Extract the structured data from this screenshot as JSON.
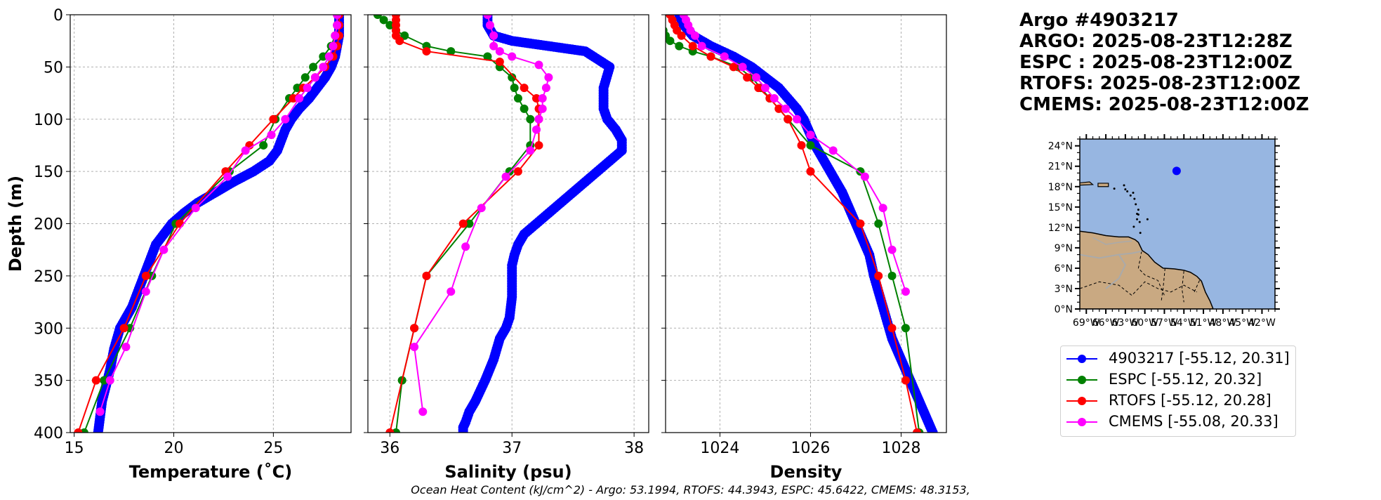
{
  "info": {
    "lines": [
      "Argo #4903217",
      "ARGO: 2025-08-23T12:28Z",
      "ESPC : 2025-08-23T12:00Z",
      "RTOFS: 2025-08-23T12:00Z",
      "CMEMS: 2025-08-23T12:00Z"
    ]
  },
  "legend": [
    {
      "label": "4903217 [-55.12, 20.31]",
      "color": "#0000ff"
    },
    {
      "label": "ESPC [-55.12, 20.32]",
      "color": "#008000"
    },
    {
      "label": "RTOFS [-55.12, 20.28]",
      "color": "#ff0000"
    },
    {
      "label": "CMEMS [-55.08, 20.33]",
      "color": "#ff00ff"
    }
  ],
  "footer": "Ocean Heat Content (kJ/cm^2) - Argo: 53.1994,  RTOFS: 44.3943,  ESPC: 45.6422,  CMEMS: 48.3153,",
  "chart_data": [
    {
      "type": "line",
      "panel": "temperature",
      "xlabel": "Temperature (˚C)",
      "ylabel": "Depth (m)",
      "xlim": [
        14.8,
        28.9
      ],
      "ylim": [
        400,
        0
      ],
      "xticks": [
        15,
        20,
        25
      ],
      "yticks": [
        0,
        50,
        100,
        150,
        200,
        250,
        300,
        350,
        400
      ],
      "series": [
        {
          "name": "4903217",
          "color": "#0000ff",
          "thick": true,
          "x": [
            28.3,
            28.3,
            28.3,
            28.2,
            28.1,
            27.9,
            27.6,
            27.2,
            26.8,
            26.3,
            25.9,
            25.6,
            25.4,
            25.2,
            24.8,
            24.0,
            23.0,
            22.1,
            21.2,
            20.5,
            19.9,
            19.5,
            19.1,
            18.9,
            18.7,
            18.5,
            18.3,
            18.1,
            17.9,
            17.6,
            17.3,
            17.0,
            16.8,
            16.6,
            16.4,
            16.3,
            16.2
          ],
          "y": [
            0,
            10,
            20,
            30,
            40,
            50,
            60,
            70,
            80,
            90,
            100,
            110,
            120,
            130,
            140,
            150,
            160,
            170,
            180,
            190,
            200,
            210,
            220,
            230,
            240,
            250,
            260,
            270,
            280,
            290,
            300,
            320,
            340,
            355,
            370,
            385,
            400
          ]
        },
        {
          "name": "ESPC",
          "color": "#008000",
          "x": [
            28.2,
            28.2,
            28.1,
            27.9,
            27.5,
            27.0,
            26.6,
            26.2,
            25.8,
            25.1,
            24.5,
            22.8,
            20.1,
            18.9,
            17.8,
            16.5,
            15.5
          ],
          "y": [
            0,
            10,
            20,
            30,
            40,
            50,
            60,
            70,
            80,
            100,
            125,
            150,
            200,
            250,
            300,
            350,
            400
          ]
        },
        {
          "name": "RTOFS",
          "color": "#ff0000",
          "x": [
            28.3,
            28.3,
            28.3,
            28.2,
            28.0,
            27.6,
            27.1,
            26.5,
            26.0,
            25.0,
            23.8,
            22.6,
            20.3,
            18.6,
            17.5,
            16.1,
            15.2
          ],
          "y": [
            0,
            10,
            20,
            30,
            40,
            50,
            60,
            70,
            80,
            100,
            125,
            150,
            200,
            250,
            300,
            350,
            400
          ]
        },
        {
          "name": "CMEMS",
          "color": "#ff00ff",
          "x": [
            28.2,
            28.2,
            28.1,
            28.0,
            27.8,
            27.5,
            27.1,
            26.7,
            26.3,
            25.6,
            24.9,
            23.6,
            22.7,
            21.1,
            19.5,
            18.6,
            17.6,
            16.8,
            16.3
          ],
          "y": [
            0,
            10,
            20,
            30,
            40,
            50,
            60,
            70,
            80,
            100,
            115,
            130,
            155,
            185,
            225,
            265,
            318,
            350,
            380
          ]
        }
      ]
    },
    {
      "type": "line",
      "panel": "salinity",
      "xlabel": "Salinity (psu)",
      "xlim": [
        35.82,
        38.12
      ],
      "ylim": [
        400,
        0
      ],
      "xticks": [
        36,
        37,
        38
      ],
      "series": [
        {
          "name": "4903217",
          "color": "#0000ff",
          "thick": true,
          "x": [
            36.8,
            36.8,
            36.85,
            37.0,
            37.3,
            37.6,
            37.8,
            37.75,
            37.75,
            37.75,
            37.78,
            37.85,
            37.9,
            37.9,
            37.8,
            37.7,
            37.6,
            37.5,
            37.4,
            37.3,
            37.2,
            37.1,
            37.05,
            37.02,
            37.0,
            37.0,
            37.0,
            36.98,
            36.95,
            36.9,
            36.85,
            36.78,
            36.7,
            36.65,
            36.62,
            36.6,
            36.6
          ],
          "y": [
            0,
            10,
            20,
            25,
            30,
            35,
            50,
            70,
            80,
            90,
            100,
            110,
            120,
            130,
            140,
            150,
            160,
            170,
            180,
            190,
            200,
            210,
            220,
            230,
            240,
            250,
            270,
            290,
            300,
            310,
            330,
            350,
            370,
            380,
            390,
            395,
            400
          ]
        },
        {
          "name": "ESPC",
          "color": "#008000",
          "x": [
            35.9,
            35.95,
            36.0,
            36.05,
            36.12,
            36.3,
            36.5,
            36.8,
            36.9,
            37.0,
            37.02,
            37.05,
            37.1,
            37.15,
            37.15,
            36.98,
            36.65,
            36.3,
            36.2,
            36.1,
            36.05
          ],
          "y": [
            0,
            5,
            10,
            15,
            20,
            30,
            35,
            40,
            50,
            60,
            70,
            80,
            90,
            100,
            125,
            150,
            200,
            250,
            300,
            350,
            400
          ]
        },
        {
          "name": "RTOFS",
          "color": "#ff0000",
          "x": [
            36.05,
            36.05,
            36.05,
            36.05,
            36.05,
            36.08,
            36.3,
            36.9,
            37.1,
            37.2,
            37.22,
            37.22,
            37.22,
            37.05,
            36.6,
            36.3,
            36.2,
            36.0
          ],
          "y": [
            0,
            5,
            10,
            15,
            20,
            25,
            35,
            45,
            70,
            80,
            90,
            100,
            125,
            150,
            200,
            250,
            300,
            400
          ]
        },
        {
          "name": "CMEMS",
          "color": "#ff00ff",
          "x": [
            36.8,
            36.82,
            36.85,
            36.85,
            36.9,
            37.0,
            37.22,
            37.3,
            37.28,
            37.25,
            37.25,
            37.22,
            37.2,
            37.15,
            36.95,
            36.75,
            36.62,
            36.5,
            36.2,
            36.27
          ],
          "y": [
            0,
            10,
            20,
            30,
            35,
            40,
            48,
            60,
            70,
            80,
            90,
            100,
            110,
            130,
            155,
            185,
            222,
            265,
            318,
            380
          ]
        }
      ]
    },
    {
      "type": "line",
      "panel": "density",
      "xlabel": "Density",
      "xlim": [
        1022.8,
        1029.0
      ],
      "ylim": [
        400,
        0
      ],
      "xticks": [
        1024,
        1026,
        1028
      ],
      "series": [
        {
          "name": "4903217",
          "color": "#0000ff",
          "thick": true,
          "x": [
            1023.1,
            1023.2,
            1023.4,
            1023.8,
            1024.3,
            1024.7,
            1025.0,
            1025.3,
            1025.5,
            1025.7,
            1025.85,
            1025.95,
            1026.1,
            1026.3,
            1026.5,
            1026.7,
            1026.85,
            1027.0,
            1027.15,
            1027.3,
            1027.4,
            1027.5,
            1027.6,
            1027.7,
            1027.8,
            1027.9,
            1028.0,
            1028.1,
            1028.2,
            1028.3,
            1028.4,
            1028.5,
            1028.6,
            1028.7
          ],
          "y": [
            0,
            10,
            20,
            30,
            40,
            50,
            60,
            70,
            80,
            90,
            100,
            110,
            125,
            140,
            155,
            170,
            185,
            200,
            215,
            230,
            250,
            265,
            280,
            295,
            310,
            320,
            330,
            340,
            350,
            360,
            370,
            380,
            390,
            400
          ]
        },
        {
          "name": "ESPC",
          "color": "#008000",
          "x": [
            1022.6,
            1022.65,
            1022.7,
            1022.75,
            1022.8,
            1022.9,
            1023.1,
            1023.4,
            1023.8,
            1024.4,
            1024.7,
            1024.9,
            1025.1,
            1025.5,
            1026.0,
            1027.1,
            1027.5,
            1027.8,
            1028.1,
            1028.4
          ],
          "y": [
            0,
            5,
            10,
            15,
            20,
            25,
            30,
            35,
            40,
            50,
            60,
            70,
            80,
            100,
            125,
            150,
            200,
            250,
            300,
            400
          ]
        },
        {
          "name": "RTOFS",
          "color": "#ff0000",
          "x": [
            1022.9,
            1022.95,
            1023.0,
            1023.05,
            1023.15,
            1023.4,
            1023.8,
            1024.3,
            1024.6,
            1024.85,
            1025.1,
            1025.3,
            1025.5,
            1025.8,
            1026.0,
            1027.1,
            1027.5,
            1027.8,
            1028.1,
            1028.35
          ],
          "y": [
            0,
            5,
            10,
            15,
            20,
            30,
            40,
            50,
            60,
            70,
            80,
            90,
            100,
            125,
            150,
            200,
            250,
            300,
            350,
            400
          ]
        },
        {
          "name": "CMEMS",
          "color": "#ff00ff",
          "x": [
            1023.2,
            1023.25,
            1023.3,
            1023.35,
            1023.45,
            1023.6,
            1024.1,
            1024.5,
            1024.8,
            1025.0,
            1025.2,
            1025.45,
            1025.7,
            1026.0,
            1026.5,
            1027.2,
            1027.6,
            1027.8,
            1028.1
          ],
          "y": [
            0,
            5,
            10,
            15,
            20,
            30,
            40,
            50,
            60,
            70,
            80,
            90,
            100,
            115,
            130,
            155,
            185,
            225,
            265
          ]
        }
      ]
    },
    {
      "type": "map",
      "panel": "location",
      "lon_range": [
        -70,
        -40
      ],
      "lat_range": [
        0,
        25
      ],
      "xtick_labels": [
        "69°W",
        "66°W",
        "63°W",
        "60°W",
        "57°W",
        "54°W",
        "51°W",
        "48°W",
        "45°W",
        "42°W"
      ],
      "xtick_values": [
        -69,
        -66,
        -63,
        -60,
        -57,
        -54,
        -51,
        -48,
        -45,
        -42
      ],
      "ytick_labels": [
        "0°N",
        "3°N",
        "6°N",
        "9°N",
        "12°N",
        "15°N",
        "18°N",
        "21°N",
        "24°N"
      ],
      "ytick_values": [
        0,
        3,
        6,
        9,
        12,
        15,
        18,
        21,
        24
      ],
      "float_position": {
        "lon": -55.12,
        "lat": 20.31,
        "color": "#0000ff"
      },
      "ocean_color": "#97b6e1",
      "land_color": "#c9a982"
    }
  ]
}
